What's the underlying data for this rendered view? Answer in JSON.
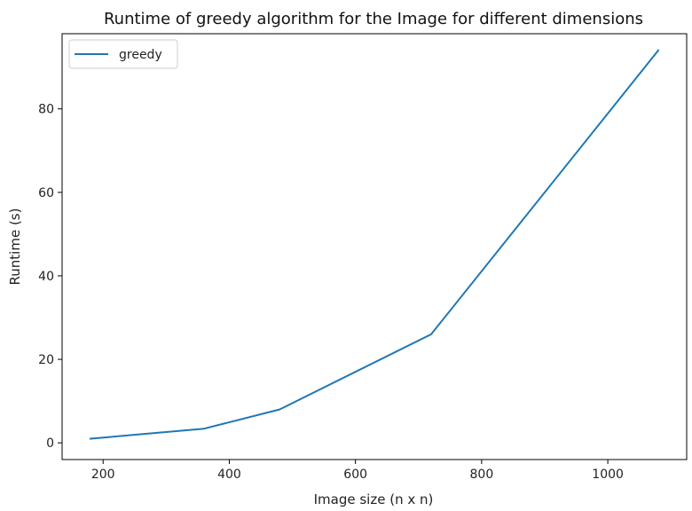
{
  "chart_data": {
    "type": "line",
    "title": "Runtime of greedy algorithm for the Image for different dimensions",
    "xlabel": "Image size (n x n)",
    "ylabel": "Runtime (s)",
    "xlim": [
      135,
      1125
    ],
    "ylim": [
      -4,
      98
    ],
    "x_ticks": [
      200,
      400,
      600,
      800,
      1000
    ],
    "y_ticks": [
      0,
      20,
      40,
      60,
      80
    ],
    "grid": false,
    "legend_position": "top-left",
    "series": [
      {
        "name": "greedy",
        "color": "#1f77b4",
        "x": [
          180,
          360,
          480,
          720,
          1080
        ],
        "y": [
          1.0,
          3.4,
          8.0,
          26.0,
          94.0
        ]
      }
    ]
  }
}
